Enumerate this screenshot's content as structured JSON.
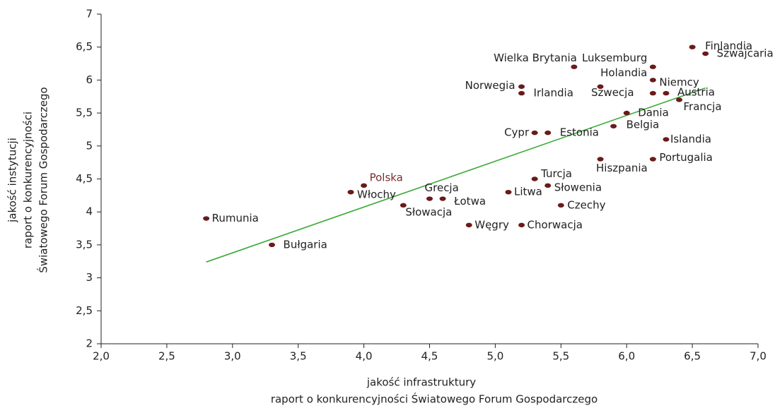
{
  "chart_data": {
    "type": "scatter",
    "xlabel": [
      "jakość infrastruktury",
      "raport o konkurencyjności Światowego Forum Gospodarczego"
    ],
    "ylabel": [
      "jakość instytucji",
      "raport o konkurencyjności",
      "Światowego Forum Gospodarczego"
    ],
    "xlim": [
      2,
      7
    ],
    "ylim": [
      2,
      7
    ],
    "xticks": [
      {
        "value": 2,
        "label": "2,0"
      },
      {
        "value": 2.5,
        "label": "2,5"
      },
      {
        "value": 3,
        "label": "3,0"
      },
      {
        "value": 3.5,
        "label": "3,5"
      },
      {
        "value": 4,
        "label": "4,0"
      },
      {
        "value": 4.5,
        "label": "4,5"
      },
      {
        "value": 5,
        "label": "5,0"
      },
      {
        "value": 5.5,
        "label": "5,5"
      },
      {
        "value": 6,
        "label": "6,0"
      },
      {
        "value": 6.5,
        "label": "6,5"
      },
      {
        "value": 7,
        "label": "7,0"
      }
    ],
    "yticks": [
      2,
      {
        "value": 2.5,
        "label": "2,5"
      },
      3,
      {
        "value": 3.5,
        "label": "3,5"
      },
      4,
      {
        "value": 4.5,
        "label": "4,5"
      },
      5,
      {
        "value": 5.5,
        "label": "5,5"
      },
      6,
      {
        "value": 6.5,
        "label": "6,5"
      },
      7
    ],
    "color": "#6b1a1a",
    "trendline": {
      "color": "#3aaa35",
      "x": [
        2.8,
        6.6
      ],
      "y": [
        3.24,
        5.88
      ]
    },
    "points": [
      {
        "label": "Finlandia",
        "x": 6.5,
        "y": 6.5
      },
      {
        "label": "Szwajcaria",
        "x": 6.6,
        "y": 6.4
      },
      {
        "label": "Wielka Brytania",
        "x": 5.6,
        "y": 6.2
      },
      {
        "label": "Luksemburg",
        "x": 6.2,
        "y": 6.2
      },
      {
        "label": "Holandia",
        "x": 6.2,
        "y": 6.0
      },
      {
        "label": "Norwegia",
        "x": 5.2,
        "y": 5.9
      },
      {
        "label": "Irlandia",
        "x": 5.2,
        "y": 5.8
      },
      {
        "label": "Szwecja",
        "x": 5.8,
        "y": 5.9
      },
      {
        "label": "Niemcy",
        "x": 6.2,
        "y": 5.8
      },
      {
        "label": "Austria",
        "x": 6.3,
        "y": 5.8
      },
      {
        "label": "Francja",
        "x": 6.4,
        "y": 5.7
      },
      {
        "label": "Dania",
        "x": 6.0,
        "y": 5.5
      },
      {
        "label": "Belgia",
        "x": 5.9,
        "y": 5.3
      },
      {
        "label": "Cypr",
        "x": 5.3,
        "y": 5.2
      },
      {
        "label": "Estonia",
        "x": 5.4,
        "y": 5.2
      },
      {
        "label": "Islandia",
        "x": 6.3,
        "y": 5.1
      },
      {
        "label": "Hiszpania",
        "x": 5.8,
        "y": 4.8
      },
      {
        "label": "Portugalia",
        "x": 6.2,
        "y": 4.8
      },
      {
        "label": "Turcja",
        "x": 5.3,
        "y": 4.5
      },
      {
        "label": "Polska",
        "x": 4.0,
        "y": 4.4,
        "label_color": "#7b2c2c"
      },
      {
        "label": "Słowenia",
        "x": 5.4,
        "y": 4.4
      },
      {
        "label": "Włochy",
        "x": 3.9,
        "y": 4.3
      },
      {
        "label": "Litwa",
        "x": 5.1,
        "y": 4.3
      },
      {
        "label": "Grecja",
        "x": 4.5,
        "y": 4.2
      },
      {
        "label": "Łotwa",
        "x": 4.6,
        "y": 4.2
      },
      {
        "label": "Słowacja",
        "x": 4.3,
        "y": 4.1
      },
      {
        "label": "Czechy",
        "x": 5.5,
        "y": 4.1
      },
      {
        "label": "Rumunia",
        "x": 2.8,
        "y": 3.9
      },
      {
        "label": "Węgry",
        "x": 4.8,
        "y": 3.8
      },
      {
        "label": "Chorwacja",
        "x": 5.2,
        "y": 3.8
      },
      {
        "label": "Bułgaria",
        "x": 3.3,
        "y": 3.5
      }
    ]
  }
}
